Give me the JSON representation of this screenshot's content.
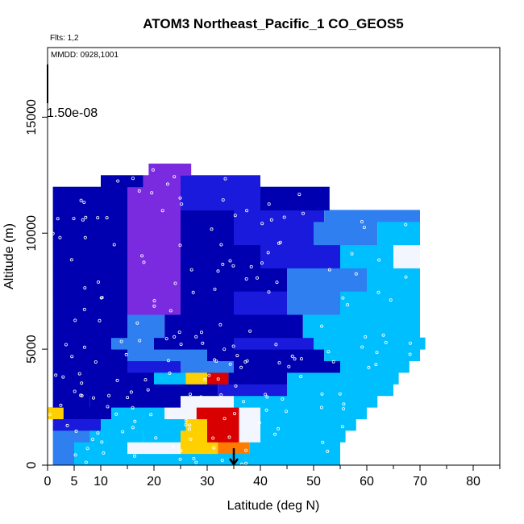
{
  "chart_data": {
    "type": "heatmap",
    "title": "ATOM3 Northeast_Pacific_1 CO_GEOS5",
    "flights_label": "Flts: 1,2",
    "dates_label": "MMDD: 0928,1001",
    "colorbar_label": "1.50e-08",
    "xlabel": "Latitude (deg N)",
    "ylabel": "Altitude (m)",
    "xlim": [
      0,
      85
    ],
    "ylim": [
      0,
      18000
    ],
    "x_ticks": [
      0,
      5,
      10,
      20,
      30,
      40,
      50,
      60,
      70,
      80
    ],
    "x_minor_ticks": [
      15,
      25,
      35,
      45,
      55,
      65,
      75,
      85
    ],
    "y_ticks": [
      0,
      5000,
      10000,
      15000
    ],
    "marker_latitude": 35,
    "colors": {
      "dark_blue": "#0000b0",
      "purple": "#7a2be0",
      "light_blue": "#00bfff",
      "white": "#f4f6ff",
      "yellow": "#ffd000",
      "red": "#d80000"
    },
    "bands": [
      {
        "alt": [
          0,
          500
        ],
        "lat": [
          1,
          55
        ],
        "segments": [
          [
            1,
            5,
            "mid_blue"
          ],
          [
            5,
            15,
            "light_blue"
          ],
          [
            15,
            25,
            "light_blue"
          ],
          [
            25,
            40,
            "light_blue"
          ],
          [
            40,
            55,
            "light_blue"
          ]
        ]
      },
      {
        "alt": [
          500,
          1000
        ],
        "lat": [
          1,
          55
        ],
        "segments": [
          [
            1,
            5,
            "mid_blue"
          ],
          [
            5,
            15,
            "light_blue"
          ],
          [
            15,
            25,
            "white"
          ],
          [
            25,
            32,
            "yellow"
          ],
          [
            32,
            38,
            "orange"
          ],
          [
            38,
            55,
            "light_blue"
          ]
        ]
      },
      {
        "alt": [
          1000,
          1500
        ],
        "lat": [
          1,
          56
        ],
        "segments": [
          [
            1,
            8,
            "mid_blue"
          ],
          [
            8,
            18,
            "light_blue"
          ],
          [
            18,
            25,
            "light_blue"
          ],
          [
            25,
            30,
            "yellow"
          ],
          [
            30,
            36,
            "red"
          ],
          [
            36,
            40,
            "white"
          ],
          [
            40,
            56,
            "light_blue"
          ]
        ]
      },
      {
        "alt": [
          1500,
          2000
        ],
        "lat": [
          1,
          58
        ],
        "segments": [
          [
            1,
            10,
            "blue"
          ],
          [
            10,
            20,
            "light_blue"
          ],
          [
            20,
            26,
            "light_blue"
          ],
          [
            26,
            30,
            "yellow"
          ],
          [
            30,
            36,
            "red"
          ],
          [
            36,
            40,
            "white"
          ],
          [
            40,
            58,
            "light_blue"
          ]
        ]
      },
      {
        "alt": [
          2000,
          2500
        ],
        "lat": [
          0,
          60
        ],
        "segments": [
          [
            0,
            3,
            "yellow"
          ],
          [
            3,
            12,
            "dark_blue"
          ],
          [
            12,
            22,
            "light_blue"
          ],
          [
            22,
            28,
            "white"
          ],
          [
            28,
            36,
            "red"
          ],
          [
            36,
            40,
            "white"
          ],
          [
            40,
            60,
            "light_blue"
          ]
        ]
      },
      {
        "alt": [
          2500,
          3000
        ],
        "lat": [
          1,
          62
        ],
        "segments": [
          [
            1,
            8,
            "dark_blue"
          ],
          [
            8,
            25,
            "dark_blue"
          ],
          [
            25,
            35,
            "white"
          ],
          [
            35,
            45,
            "light_blue"
          ],
          [
            45,
            62,
            "light_blue"
          ]
        ]
      },
      {
        "alt": [
          3000,
          3500
        ],
        "lat": [
          1,
          65
        ],
        "segments": [
          [
            1,
            20,
            "dark_blue"
          ],
          [
            20,
            32,
            "dark_blue"
          ],
          [
            32,
            45,
            "blue"
          ],
          [
            45,
            65,
            "light_blue"
          ]
        ]
      },
      {
        "alt": [
          3500,
          4000
        ],
        "lat": [
          1,
          66
        ],
        "segments": [
          [
            1,
            20,
            "dark_blue"
          ],
          [
            20,
            26,
            "light_blue"
          ],
          [
            26,
            30,
            "yellow"
          ],
          [
            30,
            34,
            "red"
          ],
          [
            34,
            45,
            "dark_blue"
          ],
          [
            45,
            66,
            "light_blue"
          ]
        ]
      },
      {
        "alt": [
          4000,
          4500
        ],
        "lat": [
          1,
          68
        ],
        "segments": [
          [
            1,
            15,
            "dark_blue"
          ],
          [
            15,
            25,
            "blue"
          ],
          [
            25,
            35,
            "mid_blue"
          ],
          [
            35,
            55,
            "dark_blue"
          ],
          [
            55,
            68,
            "light_blue"
          ]
        ]
      },
      {
        "alt": [
          4500,
          5000
        ],
        "lat": [
          1,
          70
        ],
        "segments": [
          [
            1,
            15,
            "dark_blue"
          ],
          [
            15,
            30,
            "mid_blue"
          ],
          [
            30,
            40,
            "dark_blue"
          ],
          [
            40,
            52,
            "dark_blue"
          ],
          [
            52,
            70,
            "light_blue"
          ]
        ]
      },
      {
        "alt": [
          5000,
          5500
        ],
        "lat": [
          1,
          71
        ],
        "segments": [
          [
            1,
            12,
            "dark_blue"
          ],
          [
            12,
            20,
            "mid_blue"
          ],
          [
            20,
            35,
            "dark_blue"
          ],
          [
            35,
            50,
            "blue"
          ],
          [
            50,
            71,
            "light_blue"
          ]
        ]
      },
      {
        "alt": [
          5500,
          6500
        ],
        "lat": [
          1,
          70
        ],
        "segments": [
          [
            1,
            15,
            "dark_blue"
          ],
          [
            15,
            22,
            "mid_blue"
          ],
          [
            22,
            35,
            "dark_blue"
          ],
          [
            35,
            48,
            "dark_blue"
          ],
          [
            48,
            70,
            "light_blue"
          ]
        ]
      },
      {
        "alt": [
          6500,
          7500
        ],
        "lat": [
          1,
          70
        ],
        "segments": [
          [
            1,
            15,
            "dark_blue"
          ],
          [
            15,
            25,
            "purple"
          ],
          [
            25,
            35,
            "dark_blue"
          ],
          [
            35,
            45,
            "blue"
          ],
          [
            45,
            55,
            "mid_blue"
          ],
          [
            55,
            70,
            "light_blue"
          ]
        ]
      },
      {
        "alt": [
          7500,
          8500
        ],
        "lat": [
          1,
          70
        ],
        "segments": [
          [
            1,
            15,
            "dark_blue"
          ],
          [
            15,
            25,
            "purple"
          ],
          [
            25,
            35,
            "dark_blue"
          ],
          [
            35,
            45,
            "dark_blue"
          ],
          [
            45,
            60,
            "mid_blue"
          ],
          [
            60,
            70,
            "light_blue"
          ]
        ]
      },
      {
        "alt": [
          8500,
          9500
        ],
        "lat": [
          1,
          70
        ],
        "segments": [
          [
            1,
            15,
            "dark_blue"
          ],
          [
            15,
            25,
            "purple"
          ],
          [
            25,
            40,
            "dark_blue"
          ],
          [
            40,
            55,
            "blue"
          ],
          [
            55,
            65,
            "light_blue"
          ],
          [
            65,
            70,
            "white"
          ]
        ]
      },
      {
        "alt": [
          9500,
          10500
        ],
        "lat": [
          1,
          70
        ],
        "segments": [
          [
            1,
            15,
            "dark_blue"
          ],
          [
            15,
            25,
            "purple"
          ],
          [
            25,
            35,
            "dark_blue"
          ],
          [
            35,
            50,
            "blue"
          ],
          [
            50,
            62,
            "mid_blue"
          ],
          [
            62,
            70,
            "light_blue"
          ]
        ]
      },
      {
        "alt": [
          10500,
          11000
        ],
        "lat": [
          1,
          70
        ],
        "segments": [
          [
            1,
            15,
            "dark_blue"
          ],
          [
            15,
            25,
            "purple"
          ],
          [
            25,
            35,
            "dark_blue"
          ],
          [
            35,
            52,
            "blue"
          ],
          [
            52,
            70,
            "mid_blue"
          ]
        ]
      },
      {
        "alt": [
          11000,
          12000
        ],
        "lat": [
          1,
          53
        ],
        "segments": [
          [
            1,
            15,
            "dark_blue"
          ],
          [
            15,
            25,
            "purple"
          ],
          [
            25,
            40,
            "blue"
          ],
          [
            40,
            53,
            "dark_blue"
          ]
        ]
      },
      {
        "alt": [
          12000,
          12500
        ],
        "lat": [
          10,
          40
        ],
        "segments": [
          [
            10,
            18,
            "dark_blue"
          ],
          [
            18,
            25,
            "purple"
          ],
          [
            25,
            40,
            "blue"
          ]
        ]
      },
      {
        "alt": [
          12500,
          13000
        ],
        "lat": [
          19,
          27
        ],
        "segments": [
          [
            19,
            27,
            "purple"
          ]
        ]
      }
    ]
  }
}
